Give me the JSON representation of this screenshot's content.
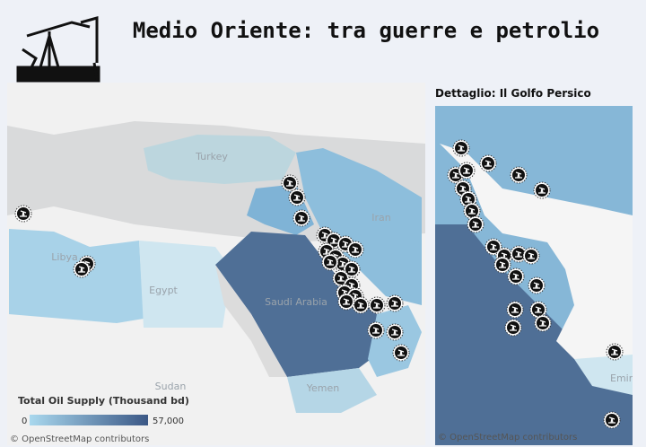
{
  "header": {
    "title": "Medio Oriente: tra guerre e petrolio"
  },
  "main_map": {
    "labels": [
      "Turkey",
      "Iran",
      "Libya",
      "Egypt",
      "Saudi Arabia",
      "Sudan",
      "Yemen"
    ],
    "legend": {
      "title": "Total Oil Supply (Thousand bd)",
      "min": "0",
      "max": "57,000"
    },
    "attribution": "© OpenStreetMap contributors"
  },
  "inset_map": {
    "title": "Dettaglio: Il Golfo Persico",
    "labels": [
      "Emirates"
    ],
    "attribution": "© OpenStreetMap contributors"
  }
}
